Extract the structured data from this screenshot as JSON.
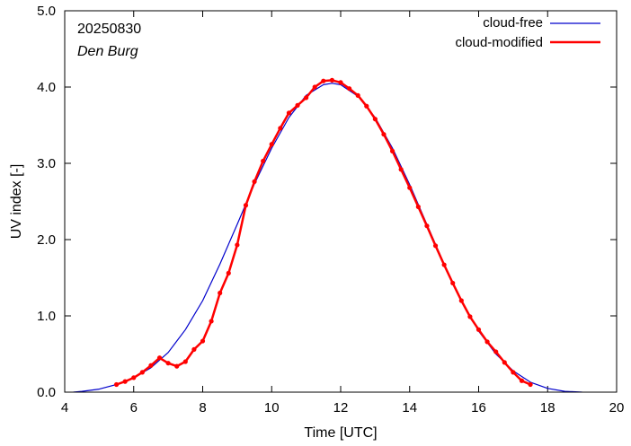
{
  "chart_data": {
    "type": "line",
    "annotations": [
      "20250830",
      "Den Burg"
    ],
    "xlabel": "Time  [UTC]",
    "ylabel": "UV index  [-]",
    "xlim": [
      4,
      20
    ],
    "ylim": [
      0,
      5
    ],
    "x_ticks": [
      4,
      6,
      8,
      10,
      12,
      14,
      16,
      18,
      20
    ],
    "x_tick_labels": [
      "4",
      "6",
      "8",
      "10",
      "12",
      "14",
      "16",
      "18",
      "20"
    ],
    "y_ticks": [
      0,
      1,
      2,
      3,
      4,
      5
    ],
    "y_tick_labels": [
      "0.0",
      "1.0",
      "2.0",
      "3.0",
      "4.0",
      "5.0"
    ],
    "grid": false,
    "legend_position": "top-right",
    "series": [
      {
        "name": "cloud-free",
        "color": "#0000cc",
        "style": "line",
        "x": [
          4.25,
          4.5,
          5.0,
          5.5,
          6.0,
          6.5,
          7.0,
          7.5,
          8.0,
          8.5,
          9.0,
          9.5,
          10.0,
          10.5,
          11.0,
          11.5,
          11.75,
          12.0,
          12.5,
          13.0,
          13.5,
          14.0,
          14.5,
          15.0,
          15.5,
          16.0,
          16.5,
          17.0,
          17.5,
          18.0,
          18.5,
          19.0
        ],
        "y": [
          0.0,
          0.01,
          0.04,
          0.1,
          0.19,
          0.32,
          0.52,
          0.82,
          1.2,
          1.68,
          2.2,
          2.73,
          3.2,
          3.6,
          3.89,
          4.03,
          4.05,
          4.03,
          3.88,
          3.6,
          3.2,
          2.72,
          2.2,
          1.68,
          1.2,
          0.8,
          0.5,
          0.28,
          0.13,
          0.05,
          0.01,
          0.0
        ]
      },
      {
        "name": "cloud-modified",
        "color": "#ff0000",
        "style": "line+points",
        "x": [
          5.5,
          5.75,
          6.0,
          6.25,
          6.5,
          6.75,
          7.0,
          7.25,
          7.5,
          7.75,
          8.0,
          8.25,
          8.5,
          8.75,
          9.0,
          9.25,
          9.5,
          9.75,
          10.0,
          10.25,
          10.5,
          10.75,
          11.0,
          11.25,
          11.5,
          11.75,
          12.0,
          12.25,
          12.5,
          12.75,
          13.0,
          13.25,
          13.5,
          13.75,
          14.0,
          14.25,
          14.5,
          14.75,
          15.0,
          15.25,
          15.5,
          15.75,
          16.0,
          16.25,
          16.5,
          16.75,
          17.0,
          17.25,
          17.5
        ],
        "y": [
          0.1,
          0.14,
          0.19,
          0.26,
          0.35,
          0.45,
          0.38,
          0.34,
          0.4,
          0.56,
          0.67,
          0.93,
          1.3,
          1.56,
          1.93,
          2.45,
          2.76,
          3.03,
          3.25,
          3.46,
          3.66,
          3.76,
          3.86,
          4.0,
          4.08,
          4.09,
          4.06,
          3.98,
          3.89,
          3.75,
          3.58,
          3.38,
          3.16,
          2.92,
          2.68,
          2.43,
          2.18,
          1.92,
          1.67,
          1.43,
          1.2,
          0.99,
          0.82,
          0.66,
          0.53,
          0.39,
          0.26,
          0.15,
          0.1
        ]
      }
    ]
  }
}
